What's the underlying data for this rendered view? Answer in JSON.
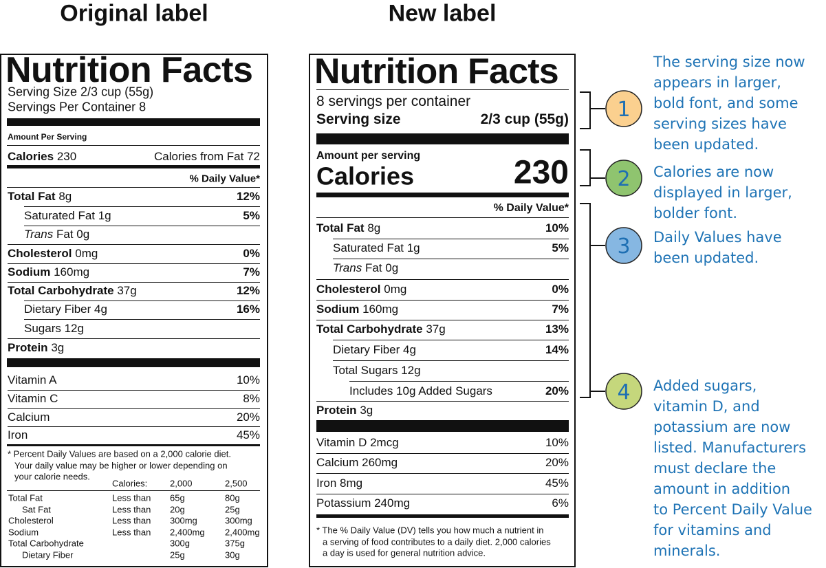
{
  "headings": {
    "original": "Original label",
    "new": "New label"
  },
  "original": {
    "title": "Nutrition Facts",
    "serving_size": "Serving Size 2/3 cup (55g)",
    "servings_per_container": "Servings Per Container 8",
    "amount_per_serving": "Amount Per Serving",
    "calories": {
      "label": "Calories",
      "value": "230"
    },
    "calories_from_fat": "Calories from Fat 72",
    "daily_value_header": "% Daily Value*",
    "nutrients": [
      {
        "name": "Total Fat",
        "amount": "8g",
        "dv": "12%"
      },
      {
        "name": "Saturated Fat 1g",
        "dv": "5%"
      },
      {
        "name": "Trans",
        "amount": "Fat 0g"
      },
      {
        "name": "Cholesterol",
        "amount": "0mg",
        "dv": "0%"
      },
      {
        "name": "Sodium",
        "amount": "160mg",
        "dv": "7%"
      },
      {
        "name": "Total Carbohydrate",
        "amount": "37g",
        "dv": "12%"
      },
      {
        "name": "Dietary Fiber 4g",
        "dv": "16%"
      },
      {
        "name": "Sugars 12g"
      },
      {
        "name": "Protein",
        "amount": "3g"
      }
    ],
    "vitamins": [
      {
        "name": "Vitamin A",
        "dv": "10%"
      },
      {
        "name": "Vitamin C",
        "dv": "8%"
      },
      {
        "name": "Calcium",
        "dv": "20%"
      },
      {
        "name": "Iron",
        "dv": "45%"
      }
    ],
    "footnote": [
      "* Percent Daily Values are based on a 2,000 calorie diet.",
      "Your daily value may be higher or lower depending on",
      "your calorie needs."
    ],
    "requirements": {
      "header": "Calories:",
      "levels": [
        "2,000",
        "2,500"
      ],
      "rows": [
        {
          "nutrient": "Total Fat",
          "limit": "Less than",
          "values": [
            "65g",
            "80g"
          ]
        },
        {
          "nutrient": "Sat Fat",
          "limit": "Less than",
          "values": [
            "20g",
            "25g"
          ]
        },
        {
          "nutrient": "Cholesterol",
          "limit": "Less than",
          "values": [
            "300mg",
            "300mg"
          ]
        },
        {
          "nutrient": "Sodium",
          "limit": "Less than",
          "values": [
            "2,400mg",
            "2,400mg"
          ]
        },
        {
          "nutrient": "Total Carbohydrate",
          "values": [
            "300g",
            "375g"
          ]
        },
        {
          "nutrient": "Dietary Fiber",
          "values": [
            "25g",
            "30g"
          ]
        }
      ]
    }
  },
  "new": {
    "title": "Nutrition Facts",
    "servings_per_container": "8 servings per container",
    "serving_size": {
      "label": "Serving size",
      "value": "2/3 cup (55g)"
    },
    "amount_per_serving": "Amount per serving",
    "calories": {
      "label": "Calories",
      "value": "230"
    },
    "daily_value_header": "% Daily Value*",
    "nutrients": [
      {
        "name": "Total Fat",
        "amount": "8g",
        "dv": "10%"
      },
      {
        "name": "Saturated Fat 1g",
        "dv": "5%"
      },
      {
        "name": "Trans",
        "amount": "Fat 0g"
      },
      {
        "name": "Cholesterol",
        "amount": "0mg",
        "dv": "0%"
      },
      {
        "name": "Sodium",
        "amount": "160mg",
        "dv": "7%"
      },
      {
        "name": "Total Carbohydrate",
        "amount": "37g",
        "dv": "13%"
      },
      {
        "name": "Dietary Fiber 4g",
        "dv": "14%"
      },
      {
        "name": "Total Sugars 12g"
      },
      {
        "name": "Includes 10g Added Sugars",
        "dv": "20%"
      },
      {
        "name": "Protein",
        "amount": "3g"
      }
    ],
    "vitamins": [
      {
        "name": "Vitamin D 2mcg",
        "dv": "10%"
      },
      {
        "name": "Calcium 260mg",
        "dv": "20%"
      },
      {
        "name": "Iron 8mg",
        "dv": "45%"
      },
      {
        "name": "Potassium 240mg",
        "dv": "6%"
      }
    ],
    "footnote": [
      "* The % Daily Value (DV) tells you how much a nutrient in",
      "a serving of food contributes to a daily diet. 2,000 calories",
      "a day is used for general nutrition advice."
    ]
  },
  "annotations": [
    {
      "number": "1",
      "lines": [
        "The serving size now",
        "appears in larger,",
        "bold font, and some",
        "serving sizes have",
        "been updated."
      ]
    },
    {
      "number": "2",
      "lines": [
        "Calories are now",
        "displayed in larger,",
        "bolder font."
      ]
    },
    {
      "number": "3",
      "lines": [
        "Daily Values have",
        "been updated."
      ]
    },
    {
      "number": "4",
      "lines": [
        "Added sugars,",
        "vitamin D, and",
        "potassium are now",
        "listed. Manufacturers",
        "must declare the",
        "amount in addition",
        "to Percent Daily Value",
        "for vitamins and",
        "minerals."
      ]
    }
  ]
}
